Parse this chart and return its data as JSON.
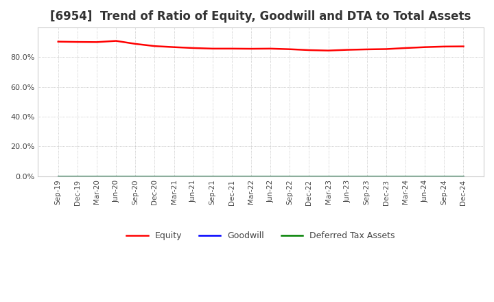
{
  "title": "[6954]  Trend of Ratio of Equity, Goodwill and DTA to Total Assets",
  "x_labels": [
    "Sep-19",
    "Dec-19",
    "Mar-20",
    "Jun-20",
    "Sep-20",
    "Dec-20",
    "Mar-21",
    "Jun-21",
    "Sep-21",
    "Dec-21",
    "Mar-22",
    "Jun-22",
    "Sep-22",
    "Dec-22",
    "Mar-23",
    "Jun-23",
    "Sep-23",
    "Dec-23",
    "Mar-24",
    "Jun-24",
    "Sep-24",
    "Dec-24"
  ],
  "equity": [
    90.5,
    90.3,
    90.2,
    91.0,
    89.0,
    87.5,
    86.8,
    86.2,
    85.8,
    85.8,
    85.7,
    85.8,
    85.4,
    84.8,
    84.5,
    85.0,
    85.3,
    85.5,
    86.2,
    86.8,
    87.2,
    87.3
  ],
  "goodwill": [
    0.0,
    0.0,
    0.0,
    0.0,
    0.0,
    0.0,
    0.0,
    0.0,
    0.0,
    0.0,
    0.0,
    0.0,
    0.0,
    0.0,
    0.0,
    0.0,
    0.0,
    0.0,
    0.0,
    0.0,
    0.0,
    0.0
  ],
  "dta": [
    0.0,
    0.0,
    0.0,
    0.0,
    0.0,
    0.0,
    0.0,
    0.0,
    0.0,
    0.0,
    0.0,
    0.0,
    0.0,
    0.0,
    0.0,
    0.0,
    0.0,
    0.0,
    0.0,
    0.0,
    0.0,
    0.0
  ],
  "equity_color": "#ff0000",
  "goodwill_color": "#0000ff",
  "dta_color": "#008000",
  "ylim": [
    0,
    100
  ],
  "yticks": [
    0,
    20,
    40,
    60,
    80
  ],
  "background_color": "#ffffff",
  "grid_color": "#aaaaaa",
  "title_fontsize": 12
}
